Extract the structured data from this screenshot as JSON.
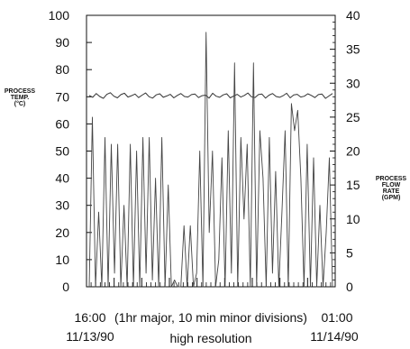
{
  "chart_data": {
    "type": "line",
    "title": "",
    "y_left": {
      "label_lines": [
        "PROCESS",
        "TEMP.",
        "(°C)"
      ],
      "range": [
        0,
        100
      ],
      "ticks": [
        "100",
        "90",
        "80",
        "70",
        "60",
        "50",
        "40",
        "30",
        "20",
        "10",
        "0"
      ]
    },
    "y_right": {
      "label_lines": [
        "PROCESS",
        "FLOW",
        "RATE",
        "(GPM)"
      ],
      "range": [
        0,
        40
      ],
      "ticks": [
        "40",
        "35",
        "30",
        "25",
        "20",
        "15",
        "10",
        "5",
        "0"
      ]
    },
    "x": {
      "start_time": "16:00",
      "start_date": "11/13/90",
      "end_time": "01:00",
      "end_date": "11/14/90",
      "note": "(1hr major, 10 min minor divisions)",
      "subtitle": "high resolution"
    },
    "series": [
      {
        "axis": "left",
        "color": "#333333",
        "values": [
          70.5,
          69.8,
          71.2,
          70.1,
          69.4,
          70.9,
          71.5,
          70.2,
          69.6,
          70.8,
          71.3,
          69.9,
          70.4,
          71.0,
          69.7,
          70.6,
          71.4,
          70.0,
          69.5,
          70.7,
          71.1,
          69.8,
          70.3,
          70.9,
          69.6,
          70.5,
          71.2,
          70.1,
          69.9,
          70.8,
          71.0,
          69.7,
          70.4,
          70.6,
          69.5,
          71.3,
          70.2,
          69.8,
          70.7,
          71.1,
          69.6,
          70.3,
          70.9,
          69.9,
          70.5,
          71.4,
          70.0,
          69.7,
          70.8,
          71.0,
          69.5,
          70.6,
          71.2,
          70.1,
          69.8,
          70.4,
          71.3,
          69.6,
          70.7,
          70.9,
          69.9,
          70.2,
          71.1,
          70.5,
          69.7,
          70.8,
          71.0,
          69.4,
          70.3,
          71.2
        ]
      },
      {
        "axis": "right",
        "color": "#444444",
        "values": [
          0,
          25,
          0,
          11,
          0,
          22,
          0,
          21,
          2,
          21,
          0,
          12,
          0,
          21,
          0,
          20,
          0,
          22,
          2,
          22,
          1,
          16,
          0,
          22,
          0,
          15,
          0,
          1,
          0,
          0,
          9,
          0,
          9,
          0,
          2,
          20,
          0,
          37.5,
          8,
          20,
          0,
          4,
          19,
          0,
          23,
          2,
          33,
          0,
          22,
          10,
          21,
          0,
          33,
          0,
          23,
          16,
          0,
          22,
          2,
          17,
          0,
          11,
          23,
          0,
          27,
          23,
          26,
          16,
          0,
          21,
          0,
          19,
          0,
          12,
          0,
          8,
          19,
          0
        ]
      }
    ]
  }
}
